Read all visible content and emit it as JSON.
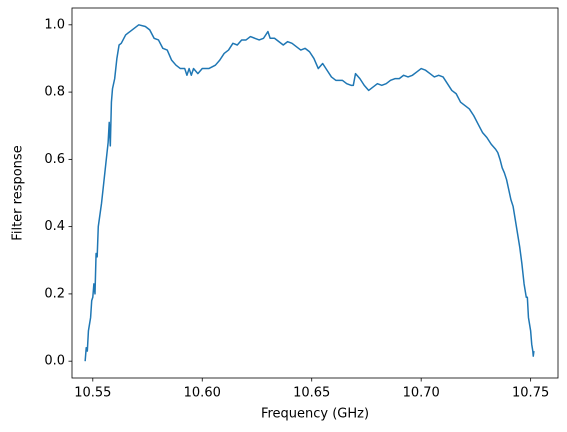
{
  "chart_data": {
    "type": "line",
    "x_label": "Frequency (GHz)",
    "y_label": "Filter response",
    "color": "#1f77b4",
    "grid": false,
    "xlim": [
      10.5405,
      10.7625
    ],
    "ylim": [
      -0.05,
      1.05
    ],
    "xticks": [
      10.55,
      {
        "value": 10.6,
        "label": "10.60"
      },
      10.65,
      {
        "value": 10.7,
        "label": "10.70"
      },
      10.75
    ],
    "yticks": [
      {
        "value": 0,
        "label": "0.0"
      },
      0.2,
      0.4,
      0.6,
      0.8,
      {
        "value": 1,
        "label": "1.0"
      }
    ],
    "x": [
      10.5465,
      10.547,
      10.5475,
      10.548,
      10.549,
      10.5495,
      10.55,
      10.5505,
      10.551,
      10.5515,
      10.552,
      10.5525,
      10.554,
      10.555,
      10.556,
      10.557,
      10.5575,
      10.558,
      10.5585,
      10.559,
      10.56,
      10.561,
      10.562,
      10.563,
      10.565,
      10.567,
      10.569,
      10.571,
      10.574,
      10.576,
      10.578,
      10.58,
      10.582,
      10.584,
      10.586,
      10.588,
      10.59,
      10.592,
      10.593,
      10.594,
      10.595,
      10.596,
      10.598,
      10.6,
      10.603,
      10.606,
      10.608,
      10.61,
      10.612,
      10.614,
      10.616,
      10.618,
      10.62,
      10.622,
      10.624,
      10.626,
      10.628,
      10.63,
      10.631,
      10.633,
      10.635,
      10.637,
      10.639,
      10.641,
      10.643,
      10.645,
      10.647,
      10.649,
      10.651,
      10.653,
      10.655,
      10.657,
      10.659,
      10.661,
      10.664,
      10.666,
      10.668,
      10.669,
      10.67,
      10.672,
      10.674,
      10.676,
      10.678,
      10.68,
      10.682,
      10.684,
      10.686,
      10.688,
      10.69,
      10.692,
      10.694,
      10.696,
      10.698,
      10.7,
      10.702,
      10.704,
      10.706,
      10.708,
      10.71,
      10.712,
      10.714,
      10.716,
      10.718,
      10.72,
      10.722,
      10.724,
      10.726,
      10.728,
      10.73,
      10.732,
      10.734,
      10.735,
      10.736,
      10.737,
      10.738,
      10.739,
      10.74,
      10.741,
      10.742,
      10.743,
      10.744,
      10.745,
      10.746,
      10.7465,
      10.747,
      10.748,
      10.7485,
      10.749,
      10.75,
      10.7505,
      10.751,
      10.7512,
      10.7515
    ],
    "values": [
      0.0,
      0.04,
      0.03,
      0.09,
      0.13,
      0.18,
      0.19,
      0.23,
      0.2,
      0.32,
      0.31,
      0.4,
      0.47,
      0.53,
      0.59,
      0.65,
      0.71,
      0.64,
      0.77,
      0.81,
      0.84,
      0.9,
      0.94,
      0.945,
      0.97,
      0.98,
      0.99,
      1.0,
      0.995,
      0.985,
      0.96,
      0.955,
      0.93,
      0.925,
      0.895,
      0.88,
      0.87,
      0.87,
      0.85,
      0.87,
      0.85,
      0.87,
      0.855,
      0.87,
      0.87,
      0.88,
      0.895,
      0.915,
      0.925,
      0.945,
      0.94,
      0.955,
      0.955,
      0.965,
      0.96,
      0.955,
      0.96,
      0.98,
      0.96,
      0.96,
      0.95,
      0.94,
      0.95,
      0.945,
      0.935,
      0.925,
      0.93,
      0.92,
      0.9,
      0.87,
      0.885,
      0.865,
      0.845,
      0.835,
      0.835,
      0.825,
      0.82,
      0.82,
      0.855,
      0.84,
      0.82,
      0.805,
      0.815,
      0.825,
      0.82,
      0.825,
      0.835,
      0.84,
      0.84,
      0.85,
      0.845,
      0.85,
      0.86,
      0.87,
      0.865,
      0.855,
      0.845,
      0.85,
      0.845,
      0.825,
      0.805,
      0.795,
      0.77,
      0.76,
      0.75,
      0.73,
      0.705,
      0.68,
      0.665,
      0.645,
      0.63,
      0.62,
      0.6,
      0.575,
      0.56,
      0.54,
      0.51,
      0.48,
      0.46,
      0.42,
      0.38,
      0.34,
      0.29,
      0.26,
      0.23,
      0.19,
      0.19,
      0.13,
      0.09,
      0.05,
      0.03,
      0.015,
      0.03
    ]
  }
}
